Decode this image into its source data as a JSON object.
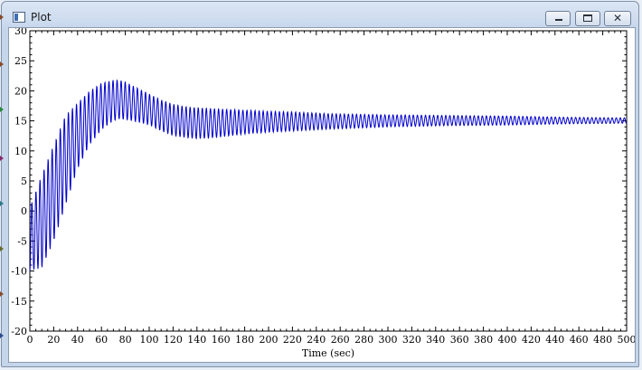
{
  "window": {
    "title": "Plot",
    "close_label": "✕"
  },
  "chart_data": {
    "type": "line",
    "title": "",
    "xlabel": "Time (sec)",
    "ylabel": "",
    "xlim": [
      0,
      500
    ],
    "ylim": [
      -20,
      30
    ],
    "xticks": [
      0,
      20,
      40,
      60,
      80,
      100,
      120,
      140,
      160,
      180,
      200,
      220,
      240,
      260,
      280,
      300,
      320,
      340,
      360,
      380,
      400,
      420,
      440,
      460,
      480,
      500
    ],
    "yticks": [
      -20,
      -15,
      -10,
      -5,
      0,
      5,
      10,
      15,
      20,
      25,
      30
    ],
    "grid": false,
    "series": [
      {
        "color": "#0000cc",
        "oscillation_period": 3.4,
        "upper_envelope": {
          "x": [
            0,
            10,
            20,
            30,
            40,
            50,
            60,
            70,
            75,
            80,
            90,
            100,
            110,
            120,
            130,
            140,
            150,
            160,
            180,
            200,
            220,
            250,
            300,
            350,
            400,
            450,
            500
          ],
          "y": [
            0.5,
            6.0,
            11.0,
            16.0,
            18.0,
            20.0,
            21.3,
            21.8,
            21.8,
            21.5,
            20.5,
            19.5,
            18.5,
            17.8,
            17.4,
            17.2,
            17.1,
            17.0,
            16.8,
            16.6,
            16.5,
            16.2,
            16.0,
            15.9,
            15.8,
            15.6,
            15.5
          ]
        },
        "lower_envelope": {
          "x": [
            0,
            10,
            20,
            30,
            40,
            50,
            60,
            70,
            75,
            80,
            90,
            100,
            110,
            120,
            130,
            140,
            150,
            160,
            180,
            200,
            220,
            250,
            300,
            350,
            400,
            450,
            500
          ],
          "y": [
            -10.0,
            -9.5,
            -5.0,
            1.0,
            7.0,
            11.0,
            13.5,
            15.0,
            15.3,
            15.2,
            14.8,
            14.3,
            13.3,
            12.5,
            12.2,
            12.0,
            12.1,
            12.3,
            12.8,
            13.1,
            13.3,
            13.6,
            14.0,
            14.2,
            14.3,
            14.5,
            14.6
          ]
        }
      }
    ]
  }
}
